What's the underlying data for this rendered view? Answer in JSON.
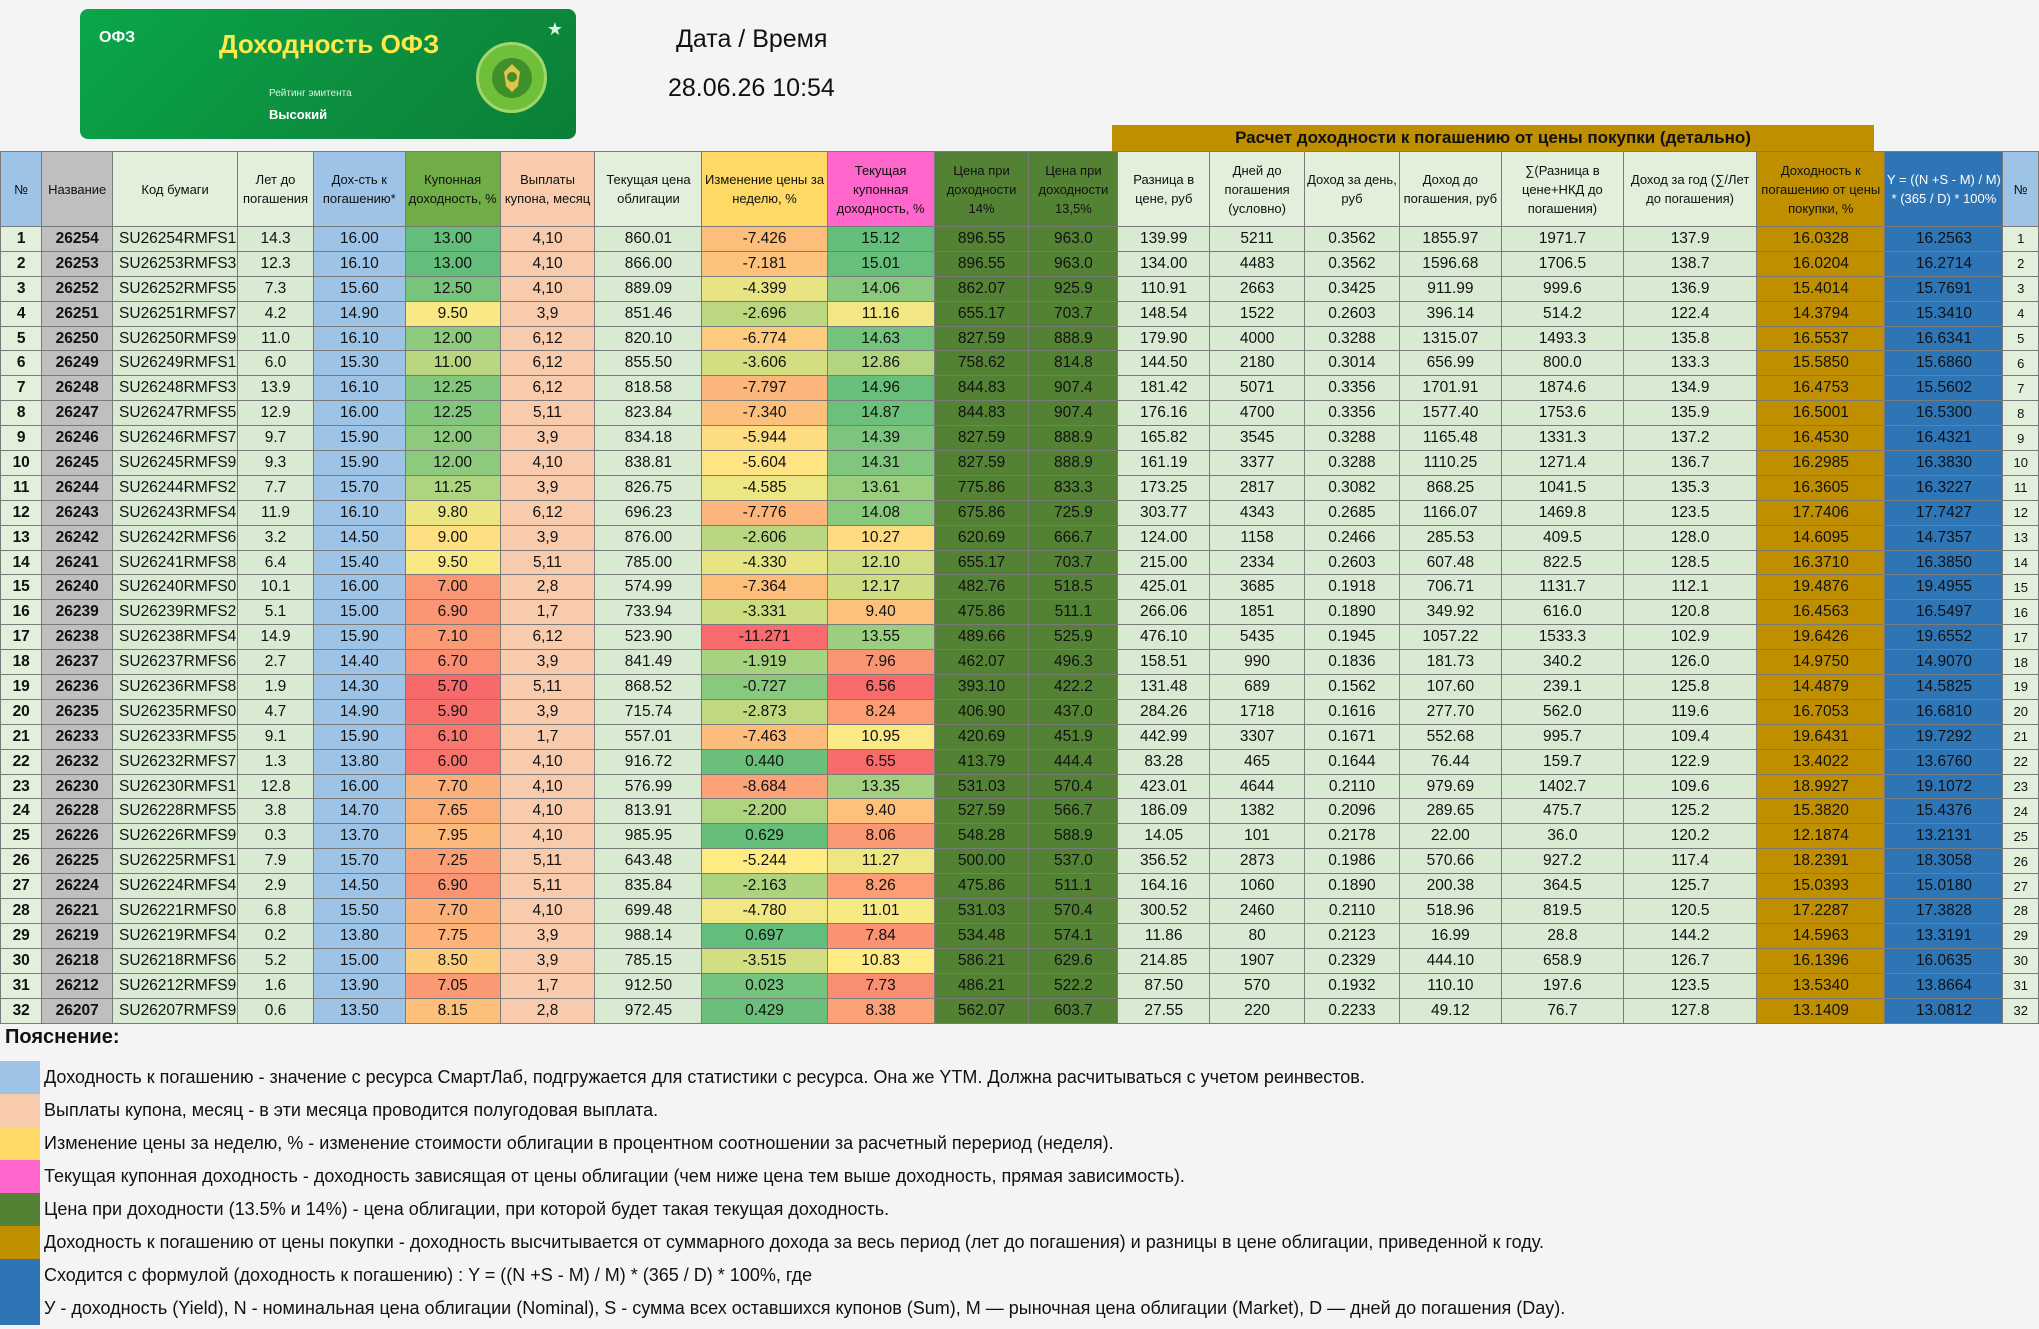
{
  "banner": {
    "tag": "ОФЗ",
    "title": "Доходность ОФЗ",
    "subtitle": "Рейтинг эмитента",
    "rating": "Высокий",
    "star": "★"
  },
  "datetime": {
    "label": "Дата / Время",
    "value": "28.06.26 10:54"
  },
  "group_header": "Расчет доходности к погашению от цены покупки (детально)",
  "columns": [
    "№",
    "Название",
    "Код бумаги",
    "Лет до погашения",
    "Дох-сть к погашению*",
    "Купонная доходность, %",
    "Выплаты купона, месяц",
    "Текущая цена облигации",
    "Изменение цены за неделю, %",
    "Текущая купонная доходность, %",
    "Цена при доходности 14%",
    "Цена при доходности 13,5%",
    "Разница в цене, руб",
    "Дней до погашения (условно)",
    "Доход за день, руб",
    "Доход до погашения, руб",
    "∑(Разница в цене+НКД до погашения)",
    "Доход за год (∑/Лет до погашения)",
    "Доходность к погашению от цены покупки, %",
    "Y = ((N +S - M) / M) * (365 / D) * 100%",
    "№"
  ],
  "rows": [
    [
      "1",
      "26254",
      "SU26254RMFS1",
      "14.3",
      "16.00",
      "13.00",
      "4,10",
      "860.01",
      "-7.426",
      "15.12",
      "896.55",
      "963.0",
      "139.99",
      "5211",
      "0.3562",
      "1855.97",
      "1971.7",
      "137.9",
      "16.0328",
      "16.2563",
      "1"
    ],
    [
      "2",
      "26253",
      "SU26253RMFS3",
      "12.3",
      "16.10",
      "13.00",
      "4,10",
      "866.00",
      "-7.181",
      "15.01",
      "896.55",
      "963.0",
      "134.00",
      "4483",
      "0.3562",
      "1596.68",
      "1706.5",
      "138.7",
      "16.0204",
      "16.2714",
      "2"
    ],
    [
      "3",
      "26252",
      "SU26252RMFS5",
      "7.3",
      "15.60",
      "12.50",
      "4,10",
      "889.09",
      "-4.399",
      "14.06",
      "862.07",
      "925.9",
      "110.91",
      "2663",
      "0.3425",
      "911.99",
      "999.6",
      "136.9",
      "15.4014",
      "15.7691",
      "3"
    ],
    [
      "4",
      "26251",
      "SU26251RMFS7",
      "4.2",
      "14.90",
      "9.50",
      "3,9",
      "851.46",
      "-2.696",
      "11.16",
      "655.17",
      "703.7",
      "148.54",
      "1522",
      "0.2603",
      "396.14",
      "514.2",
      "122.4",
      "14.3794",
      "15.3410",
      "4"
    ],
    [
      "5",
      "26250",
      "SU26250RMFS9",
      "11.0",
      "16.10",
      "12.00",
      "6,12",
      "820.10",
      "-6.774",
      "14.63",
      "827.59",
      "888.9",
      "179.90",
      "4000",
      "0.3288",
      "1315.07",
      "1493.3",
      "135.8",
      "16.5537",
      "16.6341",
      "5"
    ],
    [
      "6",
      "26249",
      "SU26249RMFS1",
      "6.0",
      "15.30",
      "11.00",
      "6,12",
      "855.50",
      "-3.606",
      "12.86",
      "758.62",
      "814.8",
      "144.50",
      "2180",
      "0.3014",
      "656.99",
      "800.0",
      "133.3",
      "15.5850",
      "15.6860",
      "6"
    ],
    [
      "7",
      "26248",
      "SU26248RMFS3",
      "13.9",
      "16.10",
      "12.25",
      "6,12",
      "818.58",
      "-7.797",
      "14.96",
      "844.83",
      "907.4",
      "181.42",
      "5071",
      "0.3356",
      "1701.91",
      "1874.6",
      "134.9",
      "16.4753",
      "15.5602",
      "7"
    ],
    [
      "8",
      "26247",
      "SU26247RMFS5",
      "12.9",
      "16.00",
      "12.25",
      "5,11",
      "823.84",
      "-7.340",
      "14.87",
      "844.83",
      "907.4",
      "176.16",
      "4700",
      "0.3356",
      "1577.40",
      "1753.6",
      "135.9",
      "16.5001",
      "16.5300",
      "8"
    ],
    [
      "9",
      "26246",
      "SU26246RMFS7",
      "9.7",
      "15.90",
      "12.00",
      "3,9",
      "834.18",
      "-5.944",
      "14.39",
      "827.59",
      "888.9",
      "165.82",
      "3545",
      "0.3288",
      "1165.48",
      "1331.3",
      "137.2",
      "16.4530",
      "16.4321",
      "9"
    ],
    [
      "10",
      "26245",
      "SU26245RMFS9",
      "9.3",
      "15.90",
      "12.00",
      "4,10",
      "838.81",
      "-5.604",
      "14.31",
      "827.59",
      "888.9",
      "161.19",
      "3377",
      "0.3288",
      "1110.25",
      "1271.4",
      "136.7",
      "16.2985",
      "16.3830",
      "10"
    ],
    [
      "11",
      "26244",
      "SU26244RMFS2",
      "7.7",
      "15.70",
      "11.25",
      "3,9",
      "826.75",
      "-4.585",
      "13.61",
      "775.86",
      "833.3",
      "173.25",
      "2817",
      "0.3082",
      "868.25",
      "1041.5",
      "135.3",
      "16.3605",
      "16.3227",
      "11"
    ],
    [
      "12",
      "26243",
      "SU26243RMFS4",
      "11.9",
      "16.10",
      "9.80",
      "6,12",
      "696.23",
      "-7.776",
      "14.08",
      "675.86",
      "725.9",
      "303.77",
      "4343",
      "0.2685",
      "1166.07",
      "1469.8",
      "123.5",
      "17.7406",
      "17.7427",
      "12"
    ],
    [
      "13",
      "26242",
      "SU26242RMFS6",
      "3.2",
      "14.50",
      "9.00",
      "3,9",
      "876.00",
      "-2.606",
      "10.27",
      "620.69",
      "666.7",
      "124.00",
      "1158",
      "0.2466",
      "285.53",
      "409.5",
      "128.0",
      "14.6095",
      "14.7357",
      "13"
    ],
    [
      "14",
      "26241",
      "SU26241RMFS8",
      "6.4",
      "15.40",
      "9.50",
      "5,11",
      "785.00",
      "-4.330",
      "12.10",
      "655.17",
      "703.7",
      "215.00",
      "2334",
      "0.2603",
      "607.48",
      "822.5",
      "128.5",
      "16.3710",
      "16.3850",
      "14"
    ],
    [
      "15",
      "26240",
      "SU26240RMFS0",
      "10.1",
      "16.00",
      "7.00",
      "2,8",
      "574.99",
      "-7.364",
      "12.17",
      "482.76",
      "518.5",
      "425.01",
      "3685",
      "0.1918",
      "706.71",
      "1131.7",
      "112.1",
      "19.4876",
      "19.4955",
      "15"
    ],
    [
      "16",
      "26239",
      "SU26239RMFS2",
      "5.1",
      "15.00",
      "6.90",
      "1,7",
      "733.94",
      "-3.331",
      "9.40",
      "475.86",
      "511.1",
      "266.06",
      "1851",
      "0.1890",
      "349.92",
      "616.0",
      "120.8",
      "16.4563",
      "16.5497",
      "16"
    ],
    [
      "17",
      "26238",
      "SU26238RMFS4",
      "14.9",
      "15.90",
      "7.10",
      "6,12",
      "523.90",
      "-11.271",
      "13.55",
      "489.66",
      "525.9",
      "476.10",
      "5435",
      "0.1945",
      "1057.22",
      "1533.3",
      "102.9",
      "19.6426",
      "19.6552",
      "17"
    ],
    [
      "18",
      "26237",
      "SU26237RMFS6",
      "2.7",
      "14.40",
      "6.70",
      "3,9",
      "841.49",
      "-1.919",
      "7.96",
      "462.07",
      "496.3",
      "158.51",
      "990",
      "0.1836",
      "181.73",
      "340.2",
      "126.0",
      "14.9750",
      "14.9070",
      "18"
    ],
    [
      "19",
      "26236",
      "SU26236RMFS8",
      "1.9",
      "14.30",
      "5.70",
      "5,11",
      "868.52",
      "-0.727",
      "6.56",
      "393.10",
      "422.2",
      "131.48",
      "689",
      "0.1562",
      "107.60",
      "239.1",
      "125.8",
      "14.4879",
      "14.5825",
      "19"
    ],
    [
      "20",
      "26235",
      "SU26235RMFS0",
      "4.7",
      "14.90",
      "5.90",
      "3,9",
      "715.74",
      "-2.873",
      "8.24",
      "406.90",
      "437.0",
      "284.26",
      "1718",
      "0.1616",
      "277.70",
      "562.0",
      "119.6",
      "16.7053",
      "16.6810",
      "20"
    ],
    [
      "21",
      "26233",
      "SU26233RMFS5",
      "9.1",
      "15.90",
      "6.10",
      "1,7",
      "557.01",
      "-7.463",
      "10.95",
      "420.69",
      "451.9",
      "442.99",
      "3307",
      "0.1671",
      "552.68",
      "995.7",
      "109.4",
      "19.6431",
      "19.7292",
      "21"
    ],
    [
      "22",
      "26232",
      "SU26232RMFS7",
      "1.3",
      "13.80",
      "6.00",
      "4,10",
      "916.72",
      "0.440",
      "6.55",
      "413.79",
      "444.4",
      "83.28",
      "465",
      "0.1644",
      "76.44",
      "159.7",
      "122.9",
      "13.4022",
      "13.6760",
      "22"
    ],
    [
      "23",
      "26230",
      "SU26230RMFS1",
      "12.8",
      "16.00",
      "7.70",
      "4,10",
      "576.99",
      "-8.684",
      "13.35",
      "531.03",
      "570.4",
      "423.01",
      "4644",
      "0.2110",
      "979.69",
      "1402.7",
      "109.6",
      "18.9927",
      "19.1072",
      "23"
    ],
    [
      "24",
      "26228",
      "SU26228RMFS5",
      "3.8",
      "14.70",
      "7.65",
      "4,10",
      "813.91",
      "-2.200",
      "9.40",
      "527.59",
      "566.7",
      "186.09",
      "1382",
      "0.2096",
      "289.65",
      "475.7",
      "125.2",
      "15.3820",
      "15.4376",
      "24"
    ],
    [
      "25",
      "26226",
      "SU26226RMFS9",
      "0.3",
      "13.70",
      "7.95",
      "4,10",
      "985.95",
      "0.629",
      "8.06",
      "548.28",
      "588.9",
      "14.05",
      "101",
      "0.2178",
      "22.00",
      "36.0",
      "120.2",
      "12.1874",
      "13.2131",
      "25"
    ],
    [
      "26",
      "26225",
      "SU26225RMFS1",
      "7.9",
      "15.70",
      "7.25",
      "5,11",
      "643.48",
      "-5.244",
      "11.27",
      "500.00",
      "537.0",
      "356.52",
      "2873",
      "0.1986",
      "570.66",
      "927.2",
      "117.4",
      "18.2391",
      "18.3058",
      "26"
    ],
    [
      "27",
      "26224",
      "SU26224RMFS4",
      "2.9",
      "14.50",
      "6.90",
      "5,11",
      "835.84",
      "-2.163",
      "8.26",
      "475.86",
      "511.1",
      "164.16",
      "1060",
      "0.1890",
      "200.38",
      "364.5",
      "125.7",
      "15.0393",
      "15.0180",
      "27"
    ],
    [
      "28",
      "26221",
      "SU26221RMFS0",
      "6.8",
      "15.50",
      "7.70",
      "4,10",
      "699.48",
      "-4.780",
      "11.01",
      "531.03",
      "570.4",
      "300.52",
      "2460",
      "0.2110",
      "518.96",
      "819.5",
      "120.5",
      "17.2287",
      "17.3828",
      "28"
    ],
    [
      "29",
      "26219",
      "SU26219RMFS4",
      "0.2",
      "13.80",
      "7.75",
      "3,9",
      "988.14",
      "0.697",
      "7.84",
      "534.48",
      "574.1",
      "11.86",
      "80",
      "0.2123",
      "16.99",
      "28.8",
      "144.2",
      "14.5963",
      "13.3191",
      "29"
    ],
    [
      "30",
      "26218",
      "SU26218RMFS6",
      "5.2",
      "15.00",
      "8.50",
      "3,9",
      "785.15",
      "-3.515",
      "10.83",
      "586.21",
      "629.6",
      "214.85",
      "1907",
      "0.2329",
      "444.10",
      "658.9",
      "126.7",
      "16.1396",
      "16.0635",
      "30"
    ],
    [
      "31",
      "26212",
      "SU26212RMFS9",
      "1.6",
      "13.90",
      "7.05",
      "1,7",
      "912.50",
      "0.023",
      "7.73",
      "486.21",
      "522.2",
      "87.50",
      "570",
      "0.1932",
      "110.10",
      "197.6",
      "123.5",
      "13.5340",
      "13.8664",
      "31"
    ],
    [
      "32",
      "26207",
      "SU26207RMFS9",
      "0.6",
      "13.50",
      "8.15",
      "2,8",
      "972.45",
      "0.429",
      "8.38",
      "562.07",
      "603.7",
      "27.55",
      "220",
      "0.2233",
      "49.12",
      "76.7",
      "127.8",
      "13.1409",
      "13.0812",
      "32"
    ]
  ],
  "notes": {
    "title": "Пояснение:",
    "items": [
      {
        "color": "#9dc3e6",
        "text": "Доходность к погашению - значение с ресурса СмартЛаб, подгружается для статистики с ресурса. Она же YTM. Должна расчитываться с учетом реинвестов."
      },
      {
        "color": "#f8cbad",
        "text": "Выплаты купона, месяц - в эти месяца проводится полугодовая выплата."
      },
      {
        "color": "#ffd966",
        "text": "Изменение цены за неделю, % - изменение стоимости облигации в процентном соотношении за расчетный перериод (неделя)."
      },
      {
        "color": "#ff66cc",
        "text": "Текущая купонная доходность - доходность зависящая от цены облигации (чем ниже цена тем выше доходность, прямая зависимость)."
      },
      {
        "color": "#548235",
        "text": "Цена при доходности (13.5% и 14%) - цена облигации, при которой будет такая текущая доходность."
      },
      {
        "color": "#bf8f00",
        "text": "Доходность к погашению от цены покупки - доходность высчитывается от суммарного дохода за весь период (лет до погашения) и разницы в цене облигации, приведенной к году."
      },
      {
        "color": "#2e75b6",
        "text": "Сходится с формулой (доходность к погашению) : Y = ((N +S - M) / M) * (365 / D) * 100%, где"
      },
      {
        "color": "#2e75b6",
        "text": " У - доходность (Yield), N - номинальная цена облигации (Nominal),  S - сумма всех оставшихся купонов (Sum),  M — рыночная цена облигации (Market),  D — дней до погашения (Day)."
      }
    ]
  }
}
